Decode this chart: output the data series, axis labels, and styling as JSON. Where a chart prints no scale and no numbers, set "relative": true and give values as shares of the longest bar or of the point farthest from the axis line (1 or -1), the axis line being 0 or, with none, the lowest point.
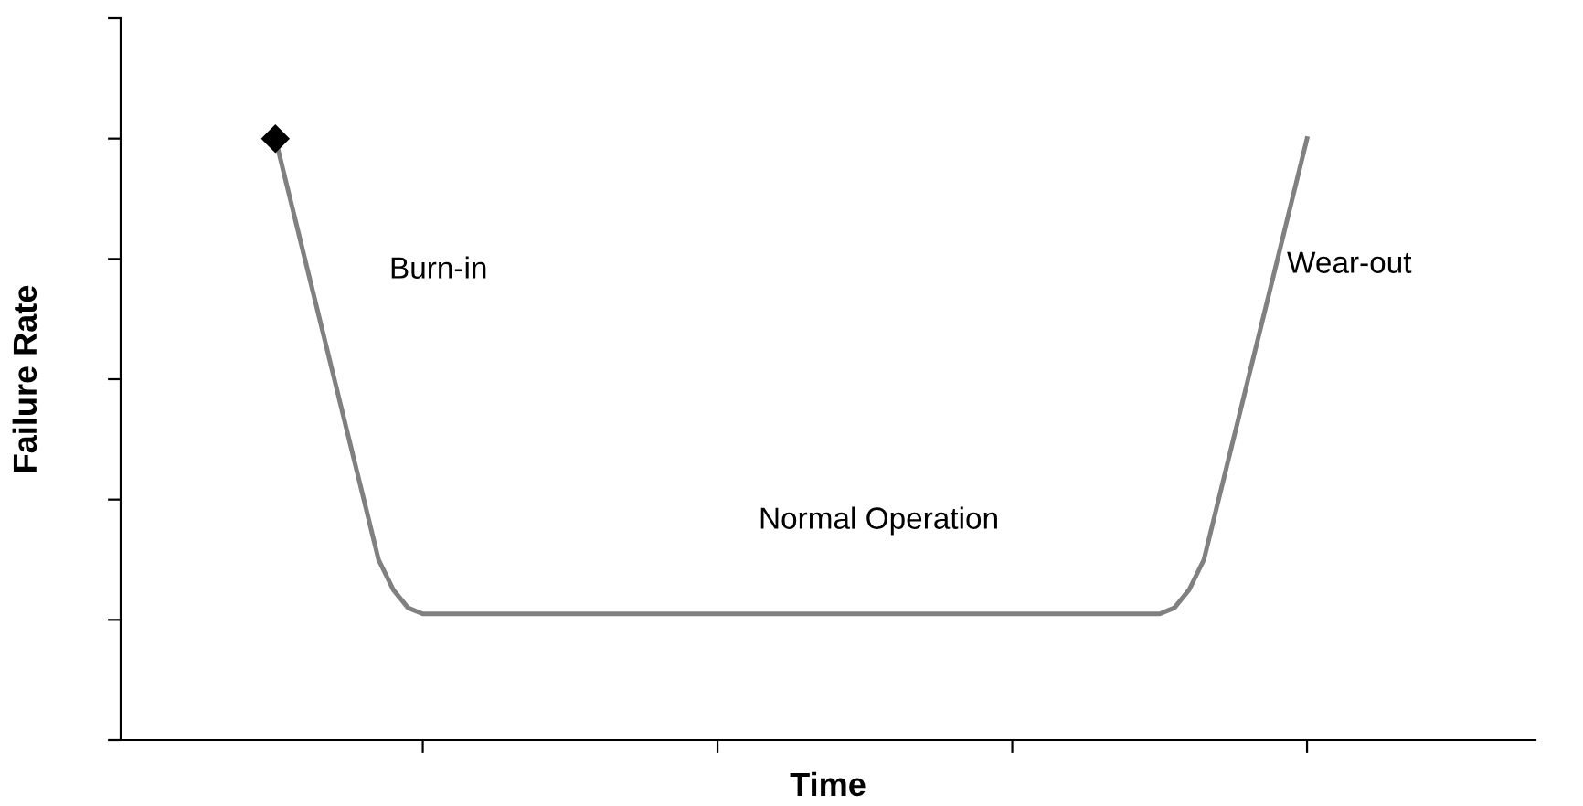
{
  "chart_data": {
    "type": "line",
    "relative": true,
    "xlabel": "Time",
    "ylabel": "Failure Rate",
    "categories": [
      null,
      null,
      null,
      null,
      null,
      null,
      null,
      null,
      null,
      null,
      null,
      null,
      null,
      null,
      null,
      null,
      null,
      null,
      null,
      null,
      null,
      null,
      null,
      null,
      null,
      null,
      null,
      null,
      null,
      null,
      null,
      null,
      null,
      null,
      null,
      null,
      null,
      null,
      null,
      null,
      null,
      null,
      null,
      null,
      null,
      null,
      null,
      null,
      null,
      null,
      null,
      null,
      null,
      null,
      null,
      null,
      null,
      null,
      null,
      null,
      null,
      null,
      null,
      null,
      null,
      null,
      null,
      null,
      null,
      null,
      null,
      null,
      null,
      null,
      null,
      null,
      null,
      null,
      null,
      null,
      null,
      null,
      null,
      null,
      null,
      null,
      null,
      null,
      null,
      null,
      null,
      null,
      null,
      null,
      null,
      null
    ],
    "series": [
      {
        "color": "#808080",
        "values": [
          null,
          null,
          null,
          null,
          null,
          null,
          null,
          null,
          null,
          null,
          1.0,
          0.9,
          0.8,
          0.7,
          0.6,
          0.5,
          0.4,
          0.3,
          0.25,
          0.22,
          0.21,
          0.21,
          0.21,
          0.21,
          0.21,
          0.21,
          0.21,
          0.21,
          0.21,
          0.21,
          0.21,
          0.21,
          0.21,
          0.21,
          0.21,
          0.21,
          0.21,
          0.21,
          0.21,
          0.21,
          0.21,
          0.21,
          0.21,
          0.21,
          0.21,
          0.21,
          0.21,
          0.21,
          0.21,
          0.21,
          0.21,
          0.21,
          0.21,
          0.21,
          0.21,
          0.21,
          0.21,
          0.21,
          0.21,
          0.21,
          0.21,
          0.21,
          0.21,
          0.21,
          0.21,
          0.21,
          0.21,
          0.21,
          0.21,
          0.21,
          0.21,
          0.22,
          0.25,
          0.3,
          0.4,
          0.5,
          0.6,
          0.7,
          0.8,
          0.9,
          1.0,
          null,
          null,
          null,
          null,
          null,
          null,
          null,
          null,
          null,
          null,
          null,
          null,
          null,
          null,
          null
        ]
      }
    ],
    "annotations": [
      "Burn-in",
      "Normal Operation",
      "Wear-out"
    ],
    "grid": false,
    "legend": false
  }
}
